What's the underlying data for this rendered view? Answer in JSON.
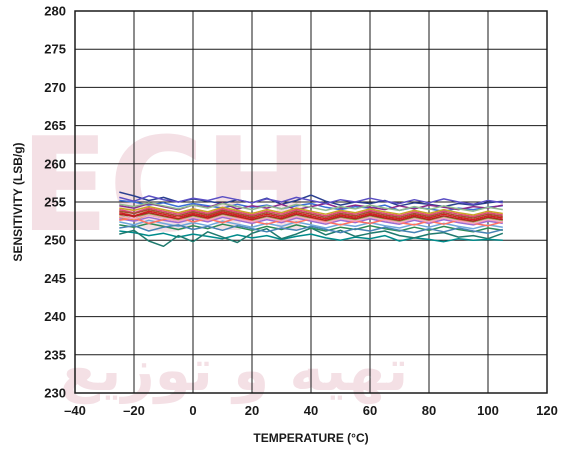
{
  "chart_data": {
    "type": "line",
    "title": "",
    "xlabel": "TEMPERATURE (°C)",
    "ylabel": "SENSITIVITY (LSB/g)",
    "xlim": [
      -40,
      120
    ],
    "ylim": [
      230,
      280
    ],
    "xticks": [
      -40,
      -20,
      0,
      20,
      40,
      60,
      80,
      100,
      120
    ],
    "xtick_labels": [
      "–40",
      "–20",
      "0",
      "20",
      "40",
      "60",
      "80",
      "100",
      "120"
    ],
    "yticks": [
      230,
      235,
      240,
      245,
      250,
      255,
      260,
      265,
      270,
      275,
      280
    ],
    "ytick_labels": [
      "230",
      "235",
      "240",
      "245",
      "250",
      "255",
      "260",
      "265",
      "270",
      "275",
      "280"
    ],
    "grid": true,
    "x": [
      -25,
      -20,
      -15,
      -10,
      -5,
      0,
      5,
      10,
      15,
      20,
      25,
      30,
      35,
      40,
      45,
      50,
      55,
      60,
      65,
      70,
      75,
      80,
      85,
      90,
      95,
      100,
      105
    ],
    "series": [
      {
        "color": "#2a3f8f",
        "values": [
          256.3,
          255.8,
          255.2,
          255.6,
          255.0,
          255.4,
          255.1,
          254.8,
          255.3,
          254.9,
          255.5,
          254.7,
          255.2,
          255.9,
          255.1,
          254.6,
          255.0,
          254.8,
          255.2,
          254.5,
          254.9,
          254.7,
          254.4,
          254.8,
          254.6,
          254.9,
          255.1
        ]
      },
      {
        "color": "#3b6fd8",
        "values": [
          255.2,
          255.0,
          254.6,
          254.9,
          254.4,
          254.8,
          254.5,
          254.2,
          254.7,
          254.3,
          254.6,
          254.1,
          254.5,
          254.8,
          254.3,
          254.0,
          254.4,
          254.2,
          254.6,
          253.9,
          254.3,
          254.1,
          253.8,
          254.2,
          254.0,
          254.3,
          254.5
        ]
      },
      {
        "color": "#008b8b",
        "values": [
          251.2,
          251.0,
          250.6,
          250.9,
          250.4,
          250.8,
          250.5,
          250.2,
          250.7,
          250.3,
          250.6,
          250.1,
          250.5,
          250.8,
          250.3,
          250.0,
          250.4,
          250.2,
          250.6,
          249.9,
          250.3,
          250.1,
          249.8,
          250.2,
          250.0,
          250.1,
          250.0
        ]
      },
      {
        "color": "#1f7a6e",
        "values": [
          250.8,
          251.3,
          249.9,
          249.2,
          250.6,
          249.8,
          251.1,
          250.4,
          249.7,
          250.9,
          251.5,
          250.2,
          250.8,
          251.6,
          250.7,
          251.3,
          250.5,
          250.9,
          251.2,
          250.6,
          250.3,
          250.8,
          251.0,
          250.4,
          250.6,
          250.2,
          250.9
        ]
      },
      {
        "color": "#8b2a8b",
        "values": [
          254.5,
          254.2,
          254.8,
          254.4,
          254.0,
          254.6,
          254.3,
          254.9,
          254.1,
          254.5,
          254.2,
          254.7,
          254.0,
          254.4,
          254.8,
          254.2,
          254.6,
          254.3,
          254.0,
          254.5,
          254.1,
          254.6,
          254.3,
          254.0,
          254.4,
          254.2,
          254.6
        ]
      },
      {
        "color": "#d41f1f",
        "values": [
          253.6,
          253.2,
          253.8,
          253.4,
          253.0,
          253.5,
          253.1,
          253.7,
          253.3,
          252.9,
          253.4,
          253.0,
          253.6,
          253.2,
          252.8,
          253.3,
          253.0,
          253.5,
          253.1,
          252.8,
          253.3,
          252.9,
          253.4,
          253.0,
          252.7,
          253.2,
          252.9
        ]
      },
      {
        "color": "#e88a1a",
        "values": [
          253.0,
          252.7,
          253.3,
          252.9,
          252.5,
          253.0,
          252.6,
          253.2,
          252.8,
          252.4,
          252.9,
          252.5,
          253.1,
          252.7,
          252.3,
          252.8,
          252.5,
          253.0,
          252.6,
          252.3,
          252.8,
          252.4,
          252.9,
          252.5,
          252.2,
          252.7,
          252.4
        ]
      },
      {
        "color": "#e0457b",
        "values": [
          254.0,
          253.6,
          254.2,
          253.8,
          253.4,
          253.9,
          253.5,
          254.1,
          253.7,
          253.3,
          253.8,
          253.4,
          254.0,
          253.6,
          253.2,
          253.7,
          253.4,
          253.9,
          253.5,
          253.2,
          253.7,
          253.3,
          253.8,
          253.4,
          253.1,
          253.6,
          253.3
        ]
      },
      {
        "color": "#6fa8dc",
        "values": [
          252.4,
          252.0,
          252.6,
          252.2,
          251.8,
          252.3,
          251.9,
          252.5,
          252.1,
          251.7,
          252.2,
          251.8,
          252.4,
          252.0,
          251.6,
          252.1,
          251.8,
          252.3,
          251.9,
          251.6,
          252.1,
          251.7,
          252.2,
          251.8,
          251.5,
          252.0,
          251.7
        ]
      },
      {
        "color": "#7cb342",
        "values": [
          253.2,
          252.8,
          253.5,
          253.1,
          252.7,
          253.2,
          252.8,
          253.4,
          253.0,
          252.6,
          253.1,
          252.7,
          253.3,
          252.9,
          252.5,
          253.0,
          252.7,
          253.2,
          252.8,
          252.5,
          253.0,
          252.6,
          253.1,
          252.7,
          252.4,
          252.9,
          252.6
        ]
      },
      {
        "color": "#9c6bd3",
        "values": [
          252.8,
          252.5,
          253.0,
          252.6,
          252.3,
          252.8,
          252.4,
          253.0,
          252.6,
          252.2,
          252.7,
          252.3,
          252.9,
          252.5,
          252.1,
          252.6,
          252.3,
          252.8,
          252.4,
          252.1,
          252.6,
          252.2,
          252.7,
          252.3,
          252.0,
          252.5,
          252.2
        ]
      },
      {
        "color": "#a0522d",
        "values": [
          253.8,
          253.5,
          254.0,
          253.6,
          253.2,
          253.7,
          253.3,
          253.9,
          253.5,
          253.1,
          253.6,
          253.2,
          253.8,
          253.4,
          253.0,
          253.5,
          253.2,
          253.7,
          253.3,
          253.0,
          253.5,
          253.1,
          253.6,
          253.2,
          252.9,
          253.4,
          253.1
        ]
      },
      {
        "color": "#c9a227",
        "values": [
          254.2,
          253.9,
          254.4,
          254.0,
          253.6,
          254.1,
          253.7,
          254.3,
          253.9,
          253.5,
          254.0,
          253.6,
          254.2,
          253.8,
          253.4,
          253.9,
          253.6,
          254.1,
          253.7,
          253.4,
          253.9,
          253.5,
          254.0,
          253.6,
          253.3,
          253.8,
          253.5
        ]
      },
      {
        "color": "#2e8b57",
        "values": [
          252.0,
          251.7,
          252.2,
          251.8,
          251.4,
          251.9,
          251.5,
          252.1,
          251.7,
          251.3,
          251.8,
          251.4,
          252.0,
          251.6,
          251.2,
          251.7,
          251.4,
          251.9,
          251.5,
          251.2,
          251.7,
          251.3,
          251.8,
          251.4,
          251.1,
          251.6,
          251.3
        ]
      },
      {
        "color": "#5b4fc4",
        "values": [
          255.6,
          255.1,
          255.8,
          255.3,
          255.0,
          255.5,
          255.2,
          255.7,
          255.3,
          254.9,
          255.4,
          255.0,
          255.6,
          255.2,
          254.8,
          255.3,
          255.0,
          255.5,
          255.1,
          254.8,
          255.3,
          254.9,
          255.4,
          255.0,
          254.7,
          255.2,
          254.9
        ]
      },
      {
        "color": "#4682b4",
        "values": [
          251.6,
          251.9,
          251.2,
          251.7,
          252.0,
          251.4,
          251.8,
          251.3,
          251.9,
          251.5,
          251.1,
          251.6,
          251.3,
          251.8,
          251.4,
          251.0,
          251.5,
          251.2,
          251.7,
          251.3,
          251.0,
          251.5,
          251.1,
          251.6,
          251.2,
          250.9,
          251.4
        ]
      },
      {
        "color": "#ff6f61",
        "values": [
          252.6,
          252.9,
          252.2,
          252.7,
          253.0,
          252.4,
          252.8,
          252.3,
          252.9,
          252.5,
          252.1,
          252.6,
          252.3,
          252.8,
          252.4,
          252.0,
          252.5,
          252.2,
          252.7,
          252.3,
          252.0,
          252.5,
          252.1,
          252.6,
          252.2,
          251.9,
          252.4
        ]
      },
      {
        "color": "#8fbc8f",
        "values": [
          254.7,
          254.4,
          254.9,
          254.5,
          254.1,
          254.6,
          254.2,
          254.8,
          254.4,
          254.0,
          254.5,
          254.1,
          254.7,
          254.3,
          253.9,
          254.4,
          254.1,
          254.6,
          254.2,
          253.9,
          254.4,
          254.0,
          254.5,
          254.1,
          253.8,
          254.3,
          254.0
        ]
      },
      {
        "color": "#b22222",
        "values": [
          253.4,
          253.1,
          253.6,
          253.2,
          252.8,
          253.3,
          252.9,
          253.5,
          253.1,
          252.7,
          253.2,
          252.8,
          253.4,
          253.0,
          252.6,
          253.1,
          252.8,
          253.3,
          252.9,
          252.6,
          253.1,
          252.7,
          253.2,
          252.8,
          252.5,
          253.0,
          252.7
        ]
      },
      {
        "color": "#f4a6c6",
        "values": [
          253.1,
          252.8,
          253.3,
          252.9,
          252.5,
          253.0,
          252.6,
          253.2,
          252.8,
          252.4,
          252.9,
          252.5,
          253.1,
          252.7,
          252.3,
          252.8,
          252.5,
          253.0,
          252.6,
          252.3,
          252.8,
          252.4,
          252.9,
          252.5,
          252.2,
          252.7,
          252.4
        ]
      }
    ]
  },
  "watermark": {
    "latin": "ECH",
    "arabic": "تهیه و توزیع"
  }
}
